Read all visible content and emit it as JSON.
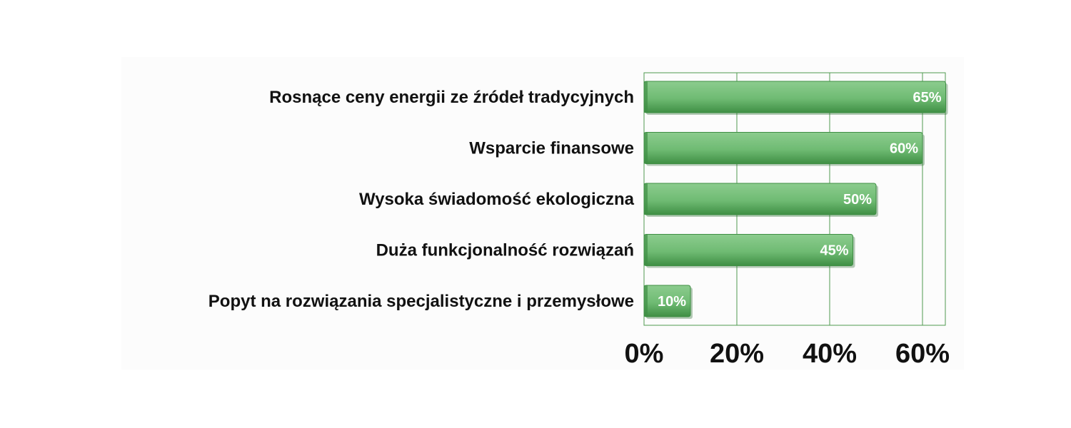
{
  "chart_data": {
    "type": "bar",
    "orientation": "horizontal",
    "title": "",
    "xlabel": "",
    "ylabel": "",
    "categories": [
      "Rosnące ceny energii ze źródeł tradycyjnych",
      "Wsparcie finansowe",
      "Wysoka świadomość ekologiczna",
      "Duża funkcjonalność rozwiązań",
      "Popyt na rozwiązania specjalistyczne i przemysłowe"
    ],
    "values": [
      65,
      60,
      50,
      45,
      10
    ],
    "data_labels": [
      "65%",
      "60%",
      "50%",
      "45%",
      "10%"
    ],
    "xlim": [
      0,
      65
    ],
    "x_ticks": [
      0,
      20,
      40,
      60
    ],
    "x_tick_labels": [
      "0%",
      "20%",
      "40%",
      "60%"
    ],
    "grid": true,
    "legend": "none",
    "colors": {
      "bar_light": "#8ccc8e",
      "bar_mid": "#6fbb73",
      "bar_dark": "#3f8f44",
      "grid": "#4f9a4f",
      "label_text": "#111111",
      "data_label_text": "#ffffff"
    }
  }
}
